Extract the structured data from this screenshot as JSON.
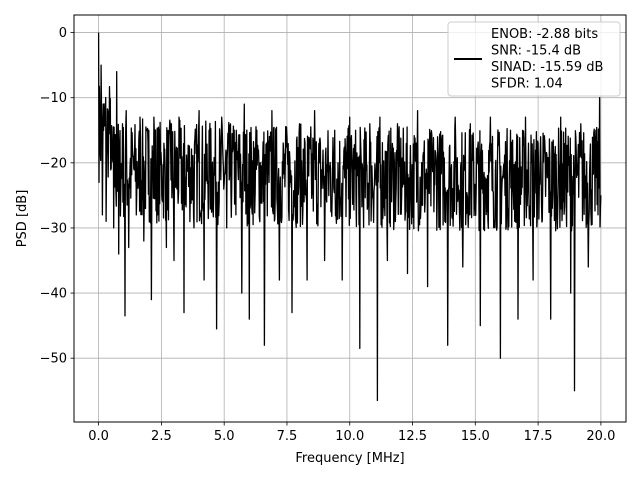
{
  "chart_data": {
    "type": "line",
    "title": "",
    "xlabel": "Frequency [MHz]",
    "ylabel": "PSD [dB]",
    "xlim": [
      -0.98,
      21.0
    ],
    "ylim": [
      -59.8,
      2.7
    ],
    "xticks": [
      0.0,
      2.5,
      5.0,
      7.5,
      10.0,
      12.5,
      15.0,
      17.5,
      20.0
    ],
    "xtick_labels": [
      "0.0",
      "2.5",
      "5.0",
      "7.5",
      "10.0",
      "12.5",
      "15.0",
      "17.5",
      "20.0"
    ],
    "yticks": [
      0,
      -10,
      -20,
      -30,
      -40,
      -50
    ],
    "ytick_labels": [
      "0",
      "−10",
      "−20",
      "−30",
      "−40",
      "−50"
    ],
    "grid": true,
    "legend_position": "top-right",
    "legend_lines": [
      "ENOB: -2.88 bits",
      "SNR: -15.4 dB",
      "SINAD: -15.59 dB",
      "SFDR: 1.04"
    ],
    "line_color": "#000000",
    "series": [
      {
        "name": "ENOB: -2.88 bits\nSNR: -15.4 dB\nSINAD: -15.59 dB\nSFDR: 1.04",
        "x": [
          0,
          0.05,
          0.1,
          0.15,
          0.2,
          0.3,
          0.45,
          0.6,
          0.72,
          0.8,
          0.95,
          1.05,
          1.1,
          1.2,
          1.35,
          1.5,
          1.65,
          1.8,
          2.0,
          2.1,
          2.2,
          2.35,
          2.5,
          2.7,
          2.9,
          3.0,
          3.2,
          3.4,
          3.6,
          3.8,
          4.0,
          4.2,
          4.4,
          4.7,
          4.9,
          5.1,
          5.4,
          5.7,
          5.8,
          6.0,
          6.3,
          6.6,
          6.9,
          7.2,
          7.5,
          7.7,
          8.0,
          8.3,
          8.6,
          9.0,
          9.4,
          9.7,
          10.0,
          10.4,
          10.8,
          11.1,
          11.2,
          11.5,
          11.9,
          12.3,
          12.7,
          13.1,
          13.5,
          13.9,
          14.2,
          14.5,
          14.8,
          15.2,
          15.6,
          16.0,
          16.4,
          16.7,
          17.0,
          17.3,
          17.6,
          18.0,
          18.4,
          18.8,
          18.95,
          19.2,
          19.5,
          19.8,
          19.95,
          20.0
        ],
        "y": [
          0,
          -14,
          -5,
          -28,
          -15,
          -29,
          -12,
          -30,
          -6,
          -34,
          -14,
          -43.5,
          -12,
          -33,
          -18,
          -28,
          -13,
          -32,
          -15,
          -41,
          -13,
          -28,
          -20,
          -33,
          -14,
          -35,
          -13,
          -43,
          -18,
          -30,
          -12,
          -38,
          -15,
          -45.5,
          -13,
          -30,
          -15,
          -40,
          -11,
          -44,
          -15,
          -48,
          -12,
          -38,
          -16,
          -43,
          -14,
          -38,
          -12,
          -35,
          -15,
          -38,
          -13,
          -48.5,
          -14,
          -56.5,
          -13,
          -35,
          -14,
          -37,
          -12,
          -39,
          -16,
          -48,
          -13,
          -36,
          -14,
          -45,
          -13,
          -50,
          -15,
          -44,
          -13,
          -38,
          -16,
          -44,
          -13,
          -40,
          -55,
          -14,
          -36,
          -15,
          -10,
          -25
        ]
      }
    ]
  }
}
